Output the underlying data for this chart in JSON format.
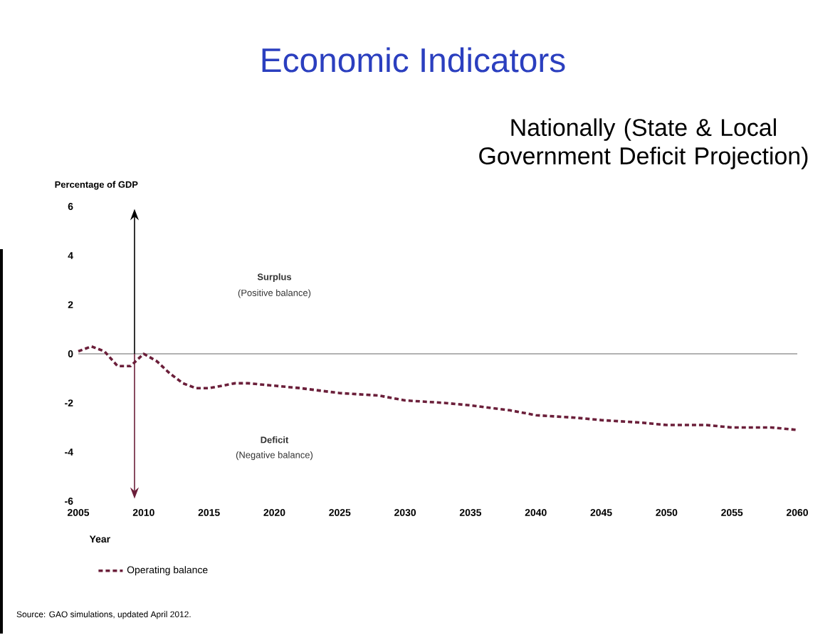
{
  "chart_data": {
    "type": "line",
    "title": "Economic Indicators",
    "subtitle": "Nationally (State & Local Government Deficit Projection)",
    "xlabel": "Year",
    "ylabel": "Percentage of GDP",
    "x": [
      2005,
      2006,
      2007,
      2008,
      2009,
      2010,
      2011,
      2012,
      2013,
      2014,
      2015,
      2016,
      2017,
      2018,
      2020,
      2022,
      2025,
      2028,
      2030,
      2033,
      2035,
      2038,
      2040,
      2043,
      2045,
      2048,
      2050,
      2053,
      2055,
      2058,
      2060
    ],
    "series": [
      {
        "name": "Operating balance",
        "color": "#6b1f3a",
        "line_style": "dashed",
        "values": [
          0.1,
          0.3,
          0.1,
          -0.5,
          -0.5,
          0.0,
          -0.3,
          -0.8,
          -1.2,
          -1.4,
          -1.4,
          -1.3,
          -1.2,
          -1.2,
          -1.3,
          -1.4,
          -1.6,
          -1.7,
          -1.9,
          -2.0,
          -2.1,
          -2.3,
          -2.5,
          -2.6,
          -2.7,
          -2.8,
          -2.9,
          -2.9,
          -3.0,
          -3.0,
          -3.1
        ]
      }
    ],
    "xlim": [
      2005,
      2060
    ],
    "ylim": [
      -6,
      6
    ],
    "xticks": [
      2005,
      2010,
      2015,
      2020,
      2025,
      2030,
      2035,
      2040,
      2045,
      2050,
      2055,
      2060
    ],
    "yticks": [
      -6,
      -4,
      -2,
      0,
      2,
      4,
      6
    ],
    "ref_lines": [
      {
        "axis": "y",
        "value": 0,
        "color": "#999999"
      }
    ],
    "annotations": [
      "Surplus",
      "(Positive balance)",
      "Deficit",
      "(Negative balance)",
      "Source: GAO simulations, updated April 2012."
    ],
    "legend": "bottom left",
    "grid": false,
    "marker": "none"
  }
}
